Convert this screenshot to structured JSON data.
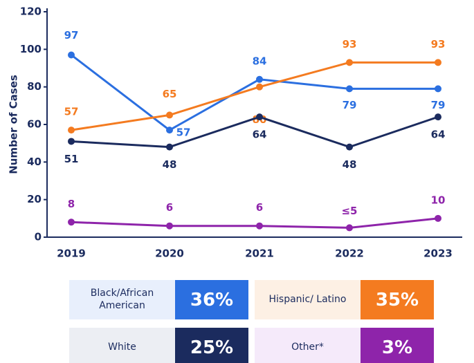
{
  "chart_data": {
    "type": "line",
    "y_label": "Number of Cases",
    "categories": [
      "2019",
      "2020",
      "2021",
      "2022",
      "2023"
    ],
    "ylim": [
      0,
      120
    ],
    "yticks": [
      0,
      20,
      40,
      60,
      80,
      100,
      120
    ],
    "series": [
      {
        "name": "Black/African American",
        "color": "#2b6fe0",
        "values": [
          97,
          57,
          84,
          79,
          79
        ],
        "share": 36,
        "share_label": "36%"
      },
      {
        "name": "Hispanic/ Latino",
        "color": "#f47b20",
        "values": [
          57,
          65,
          80,
          93,
          93
        ],
        "share": 35,
        "share_label": "35%"
      },
      {
        "name": "White",
        "color": "#1b2b5e",
        "values": [
          51,
          48,
          64,
          48,
          64
        ],
        "share": 25,
        "share_label": "25%"
      },
      {
        "name": "Other*",
        "color": "#8e24aa",
        "values": [
          8,
          6,
          6,
          5,
          10
        ],
        "value_labels": [
          "8",
          "6",
          "6",
          "≤5",
          "10"
        ],
        "share": 3,
        "share_label": "3%"
      }
    ]
  }
}
